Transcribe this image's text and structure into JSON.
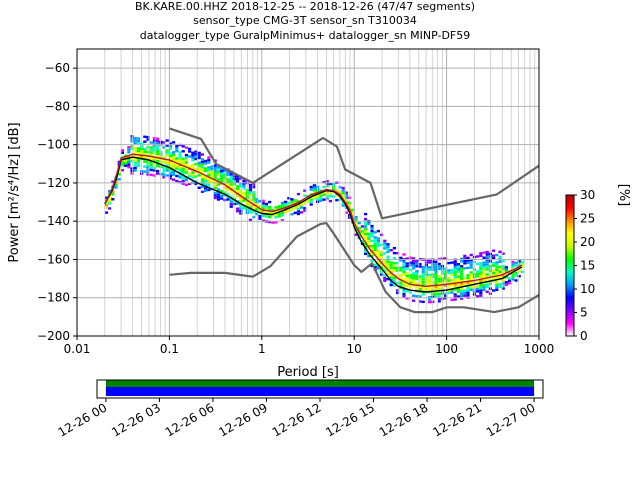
{
  "title_lines": [
    "BK.KARE.00.HHZ   2018-12-25 -- 2018-12-26  (47/47 segments)",
    "sensor_type CMG-3T sensor_sn T310034",
    "datalogger_type GuralpMinimus+ datalogger_sn MINP-DF59"
  ],
  "chart_data": {
    "type": "heatmap",
    "title": "BK.KARE.00.HHZ   2018-12-25 -- 2018-12-26  (47/47 segments)",
    "xlabel": "Period [s]",
    "ylabel": "Power [m²/s⁴/Hz] [dB]",
    "x_scale": "log",
    "xlim": [
      0.01,
      1000
    ],
    "ylim": [
      -200,
      -50
    ],
    "grid": true,
    "x_ticks": [
      {
        "v": 0.01,
        "label": "0.01"
      },
      {
        "v": 0.1,
        "label": "0.1"
      },
      {
        "v": 1,
        "label": "1"
      },
      {
        "v": 10,
        "label": "10"
      },
      {
        "v": 100,
        "label": "100"
      },
      {
        "v": 1000,
        "label": "1000"
      }
    ],
    "y_ticks": [
      -200,
      -180,
      -160,
      -140,
      -120,
      -100,
      -80,
      -60
    ],
    "series": [
      {
        "role": "noise_model_high",
        "color": "#666666",
        "points": [
          [
            0.1,
            -91.5
          ],
          [
            0.22,
            -97.0
          ],
          [
            0.32,
            -110.0
          ],
          [
            0.8,
            -120.0
          ],
          [
            3.8,
            -99.0
          ],
          [
            4.6,
            -96.5
          ],
          [
            6.5,
            -101.0
          ],
          [
            8.0,
            -113.0
          ],
          [
            15.0,
            -120.0
          ],
          [
            20.0,
            -138.5
          ],
          [
            350.0,
            -126.0
          ],
          [
            1000.0,
            -111.0
          ]
        ]
      },
      {
        "role": "noise_model_low",
        "color": "#666666",
        "points": [
          [
            0.1,
            -168.0
          ],
          [
            0.17,
            -167.0
          ],
          [
            0.4,
            -167.0
          ],
          [
            0.8,
            -169.0
          ],
          [
            1.24,
            -163.5
          ],
          [
            2.4,
            -148.0
          ],
          [
            4.3,
            -141.5
          ],
          [
            5.0,
            -141.0
          ],
          [
            6.0,
            -146.5
          ],
          [
            10.0,
            -163.0
          ],
          [
            12.0,
            -166.5
          ],
          [
            15.6,
            -162.0
          ],
          [
            21.9,
            -177.0
          ],
          [
            31.6,
            -185.0
          ],
          [
            45.0,
            -187.5
          ],
          [
            70.0,
            -187.5
          ],
          [
            101.0,
            -185.0
          ],
          [
            154.0,
            -185.0
          ],
          [
            328.0,
            -187.5
          ],
          [
            600.0,
            -185.0
          ],
          [
            1000.0,
            -178.5
          ]
        ]
      },
      {
        "role": "mode",
        "color": "#000000",
        "points": [
          [
            0.02,
            -131
          ],
          [
            0.024,
            -124
          ],
          [
            0.027,
            -117
          ],
          [
            0.03,
            -108
          ],
          [
            0.04,
            -106.5
          ],
          [
            0.06,
            -108
          ],
          [
            0.1,
            -112
          ],
          [
            0.2,
            -120
          ],
          [
            0.4,
            -126
          ],
          [
            0.6,
            -131
          ],
          [
            0.8,
            -134
          ],
          [
            1.0,
            -136
          ],
          [
            1.3,
            -136.5
          ],
          [
            1.8,
            -134
          ],
          [
            2.5,
            -131
          ],
          [
            3.5,
            -127
          ],
          [
            5.0,
            -124
          ],
          [
            6.0,
            -124.5
          ],
          [
            7.0,
            -127
          ],
          [
            8.0,
            -131
          ],
          [
            9.0,
            -136
          ],
          [
            10.0,
            -143
          ],
          [
            12.0,
            -151
          ],
          [
            15.0,
            -158
          ],
          [
            20.0,
            -165
          ],
          [
            25.0,
            -171
          ],
          [
            30.0,
            -174
          ],
          [
            40.0,
            -176
          ],
          [
            60.0,
            -177
          ],
          [
            100.0,
            -176
          ],
          [
            200.0,
            -173
          ],
          [
            400.0,
            -170
          ],
          [
            550.0,
            -166
          ],
          [
            650.0,
            -164
          ]
        ]
      },
      {
        "role": "mean",
        "color": "#b4172f",
        "points": [
          [
            0.02,
            -131
          ],
          [
            0.024,
            -123
          ],
          [
            0.027,
            -115
          ],
          [
            0.03,
            -107
          ],
          [
            0.04,
            -105
          ],
          [
            0.06,
            -106
          ],
          [
            0.1,
            -108
          ],
          [
            0.2,
            -114
          ],
          [
            0.4,
            -121
          ],
          [
            0.6,
            -127
          ],
          [
            0.8,
            -131
          ],
          [
            1.0,
            -134
          ],
          [
            1.3,
            -135
          ],
          [
            1.8,
            -133
          ],
          [
            2.5,
            -130
          ],
          [
            3.5,
            -126
          ],
          [
            5.0,
            -123.5
          ],
          [
            6.0,
            -124
          ],
          [
            7.0,
            -126
          ],
          [
            8.0,
            -130
          ],
          [
            9.0,
            -134
          ],
          [
            10.0,
            -141
          ],
          [
            12.0,
            -148
          ],
          [
            15.0,
            -155
          ],
          [
            20.0,
            -162
          ],
          [
            25.0,
            -167
          ],
          [
            30.0,
            -170
          ],
          [
            40.0,
            -173
          ],
          [
            60.0,
            -174
          ],
          [
            100.0,
            -173
          ],
          [
            200.0,
            -171
          ],
          [
            400.0,
            -168
          ],
          [
            550.0,
            -165
          ],
          [
            650.0,
            -163
          ]
        ]
      }
    ],
    "colorbar": {
      "label": "[%]",
      "range": [
        0,
        30
      ],
      "ticks": [
        0,
        5,
        10,
        15,
        20,
        25,
        30
      ],
      "colormap": [
        "#ffffff",
        "#ff00ff",
        "#7b00ff",
        "#0000ff",
        "#00a0ff",
        "#00ffc0",
        "#00ff00",
        "#c8ff00",
        "#ffff00",
        "#ff8c00",
        "#ff0000",
        "#b40000"
      ]
    },
    "timeline": {
      "type": "timeline",
      "xlim": [
        "2018-12-25T23:30",
        "2018-12-27T00:30"
      ],
      "tick_labels": [
        "12-26 00",
        "12-26 03",
        "12-26 06",
        "12-26 09",
        "12-26 12",
        "12-26 15",
        "12-26 18",
        "12-26 21",
        "12-27 00"
      ],
      "tick_hours": [
        0,
        3,
        6,
        9,
        12,
        15,
        18,
        21,
        24
      ],
      "bars": [
        {
          "role": "data_available",
          "color": "#008000",
          "start_hour": 0,
          "end_hour": 24
        },
        {
          "role": "psd_used",
          "color": "#0000ff",
          "start_hour": 0,
          "end_hour": 24
        }
      ]
    }
  }
}
